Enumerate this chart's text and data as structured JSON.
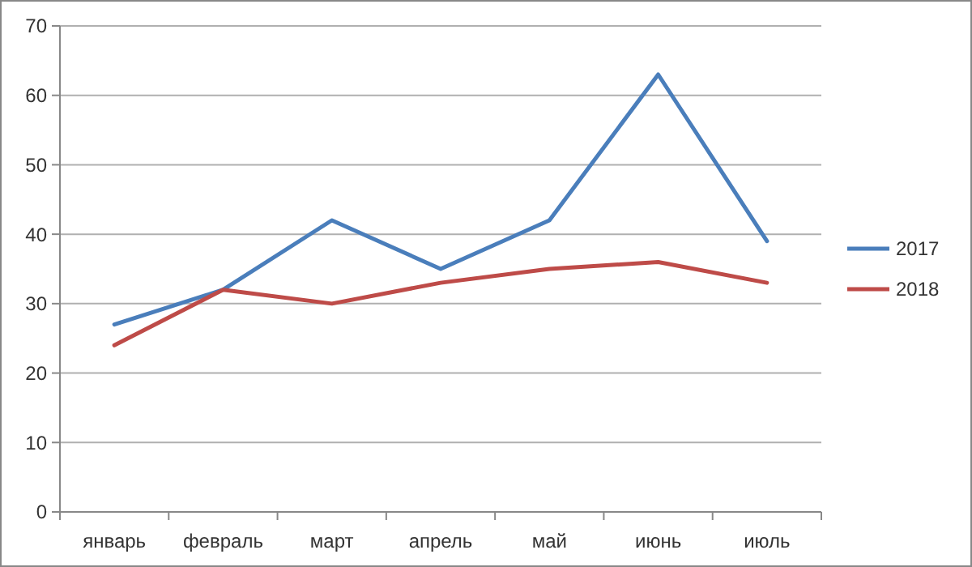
{
  "chart_data": {
    "type": "line",
    "categories": [
      "январь",
      "февраль",
      "март",
      "апрель",
      "май",
      "июнь",
      "июль"
    ],
    "series": [
      {
        "name": "2017",
        "color": "#4a7ebb",
        "values": [
          27,
          32,
          42,
          35,
          42,
          63,
          39
        ]
      },
      {
        "name": "2018",
        "color": "#be4b48",
        "values": [
          24,
          32,
          30,
          33,
          35,
          36,
          33
        ]
      }
    ],
    "ylim": [
      0,
      70
    ],
    "yticks": [
      0,
      10,
      20,
      30,
      40,
      50,
      60,
      70
    ],
    "grid": "y",
    "legend": "right",
    "marker": "none",
    "line_style": "solid"
  }
}
